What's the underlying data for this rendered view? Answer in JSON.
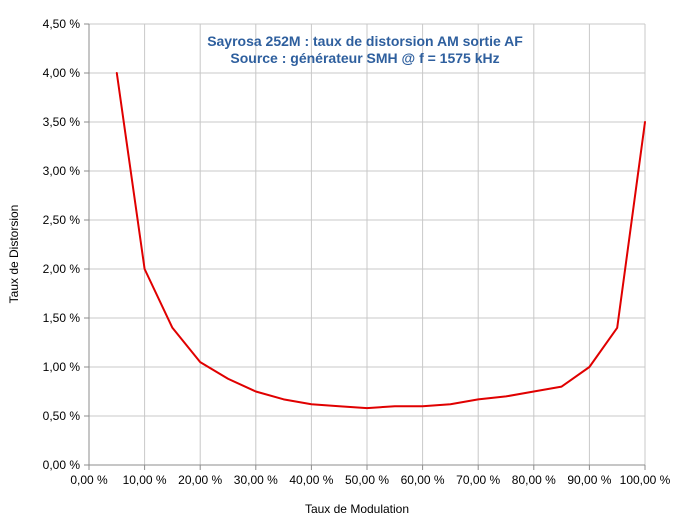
{
  "chart_data": {
    "type": "line",
    "title": "Sayrosa 252M : taux de distorsion AM sortie AF",
    "subtitle": "Source : générateur SMH @ f = 1575 kHz",
    "xlabel": "Taux de Modulation",
    "ylabel": "Taux de Distorsion",
    "xlim": [
      0,
      100
    ],
    "ylim": [
      0,
      4.5
    ],
    "x_ticks": [
      0,
      10,
      20,
      30,
      40,
      50,
      60,
      70,
      80,
      90,
      100
    ],
    "x_tick_labels": [
      "0,00 %",
      "10,00 %",
      "20,00 %",
      "30,00 %",
      "40,00 %",
      "50,00 %",
      "60,00 %",
      "70,00 %",
      "80,00 %",
      "90,00 %",
      "100,00 %"
    ],
    "y_ticks": [
      0,
      0.5,
      1,
      1.5,
      2,
      2.5,
      3,
      3.5,
      4,
      4.5
    ],
    "y_tick_labels": [
      "0,00 %",
      "0,50 %",
      "1,00 %",
      "1,50 %",
      "2,00 %",
      "2,50 %",
      "3,00 %",
      "3,50 %",
      "4,00 %",
      "4,50 %"
    ],
    "grid": true,
    "legend": "none",
    "colors": {
      "line": "#e00000",
      "title": "#2e5f9e",
      "grid": "#c8c8c8",
      "axis": "#8c8c8c"
    },
    "series": [
      {
        "x": [
          5,
          10,
          15,
          20,
          25,
          30,
          35,
          40,
          45,
          50,
          55,
          60,
          65,
          70,
          75,
          80,
          85,
          90,
          95,
          100
        ],
        "values": [
          4.0,
          2.0,
          1.4,
          1.05,
          0.88,
          0.75,
          0.67,
          0.62,
          0.6,
          0.58,
          0.6,
          0.6,
          0.62,
          0.67,
          0.7,
          0.75,
          0.8,
          1.0,
          1.4,
          3.5
        ]
      }
    ]
  }
}
